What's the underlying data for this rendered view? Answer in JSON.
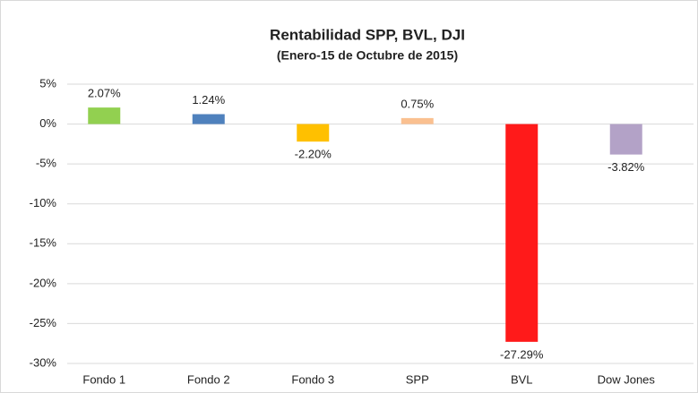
{
  "chart_data": {
    "type": "bar",
    "title": "Rentabilidad SPP, BVL, DJI",
    "subtitle": "(Enero-15 de Octubre de 2015)",
    "categories": [
      "Fondo 1",
      "Fondo 2",
      "Fondo 3",
      "SPP",
      "BVL",
      "Dow Jones"
    ],
    "values": [
      2.07,
      1.24,
      -2.2,
      0.75,
      -27.29,
      -3.82
    ],
    "value_labels": [
      "2.07%",
      "1.24%",
      "-2.20%",
      "0.75%",
      "-27.29%",
      "-3.82%"
    ],
    "colors": [
      "#92d050",
      "#4f81bd",
      "#ffc000",
      "#fac090",
      "#ff1a1a",
      "#b3a2c7"
    ],
    "ylim": [
      -30,
      5
    ],
    "yticks": [
      {
        "value": 5,
        "label": "5%"
      },
      {
        "value": 0,
        "label": "0%"
      },
      {
        "value": -5,
        "label": "-5%"
      },
      {
        "value": -10,
        "label": "-10%"
      },
      {
        "value": -15,
        "label": "-15%"
      },
      {
        "value": -20,
        "label": "-20%"
      },
      {
        "value": -25,
        "label": "-25%"
      },
      {
        "value": -30,
        "label": "-30%"
      }
    ],
    "grid": true
  }
}
